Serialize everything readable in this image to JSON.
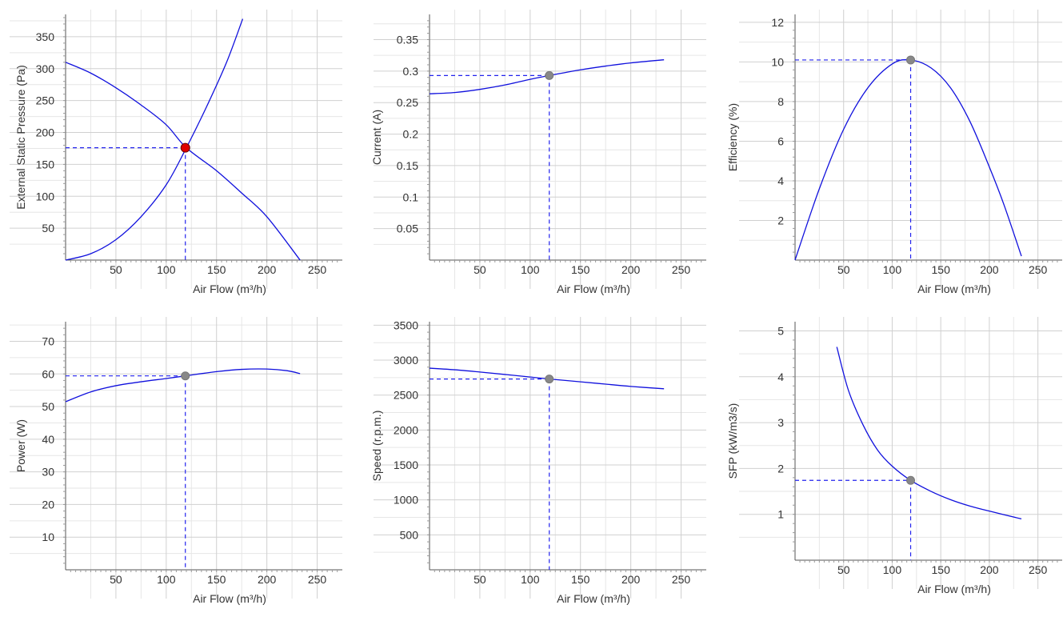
{
  "colors": {
    "curve": "#1010dd",
    "guide": "#2222ee",
    "op_point": "#888888",
    "op_point_primary": "#e00000",
    "grid": "#d0d0d0",
    "axis": "#555555"
  },
  "chart_data": [
    {
      "type": "line",
      "xlabel": "Air Flow (m³/h)",
      "ylabel": "External Static Pressure (Pa)",
      "xlim": [
        0,
        275
      ],
      "ylim": [
        0,
        385
      ],
      "xticks": [
        50,
        100,
        150,
        200,
        250
      ],
      "yticks": [
        50,
        100,
        150,
        200,
        250,
        300,
        350
      ],
      "grid": true,
      "series": [
        {
          "x": [
            0,
            25,
            50,
            75,
            100,
            120,
            150,
            175,
            200,
            233
          ],
          "y": [
            310,
            293,
            270,
            243,
            212,
            176,
            140,
            105,
            68,
            0
          ]
        },
        {
          "x": [
            0,
            25,
            50,
            75,
            100,
            120,
            140,
            160,
            176
          ],
          "y": [
            0,
            10,
            32,
            68,
            118,
            176,
            240,
            310,
            378
          ]
        }
      ],
      "operating_point": {
        "x": 119,
        "y": 176,
        "primary": true
      }
    },
    {
      "type": "line",
      "xlabel": "Air Flow (m³/h)",
      "ylabel": "Current (A)",
      "xlim": [
        0,
        275
      ],
      "ylim": [
        0,
        0.39
      ],
      "xticks": [
        50,
        100,
        150,
        200,
        250
      ],
      "yticks": [
        0.05,
        0.1,
        0.15,
        0.2,
        0.25,
        0.3,
        0.35
      ],
      "grid": true,
      "series": [
        {
          "x": [
            0,
            25,
            50,
            75,
            100,
            119,
            150,
            175,
            200,
            233
          ],
          "y": [
            0.264,
            0.266,
            0.271,
            0.278,
            0.287,
            0.293,
            0.302,
            0.308,
            0.313,
            0.318
          ]
        }
      ],
      "operating_point": {
        "x": 119,
        "y": 0.293
      }
    },
    {
      "type": "line",
      "xlabel": "Air Flow (m³/h)",
      "ylabel": "Efficiency (%)",
      "xlim": [
        0,
        275
      ],
      "ylim": [
        0,
        12.4
      ],
      "xticks": [
        50,
        100,
        150,
        200,
        250
      ],
      "yticks": [
        2,
        4,
        6,
        8,
        10,
        12
      ],
      "grid": true,
      "series": [
        {
          "x": [
            0,
            25,
            50,
            75,
            100,
            119,
            140,
            160,
            180,
            200,
            215,
            233
          ],
          "y": [
            0,
            3.6,
            6.6,
            8.7,
            9.9,
            10.1,
            9.7,
            8.7,
            7.0,
            4.7,
            2.8,
            0.2
          ]
        }
      ],
      "operating_point": {
        "x": 119,
        "y": 10.1
      }
    },
    {
      "type": "line",
      "xlabel": "Air Flow (m³/h)",
      "ylabel": "Power (W)",
      "xlim": [
        0,
        275
      ],
      "ylim": [
        0,
        76
      ],
      "xticks": [
        50,
        100,
        150,
        200,
        250
      ],
      "yticks": [
        10,
        20,
        30,
        40,
        50,
        60,
        70
      ],
      "grid": true,
      "series": [
        {
          "x": [
            0,
            25,
            50,
            75,
            100,
            119,
            150,
            175,
            200,
            220,
            233
          ],
          "y": [
            51.5,
            54.5,
            56.4,
            57.6,
            58.6,
            59.4,
            60.7,
            61.4,
            61.5,
            61.0,
            60.1
          ]
        }
      ],
      "operating_point": {
        "x": 119,
        "y": 59.4
      }
    },
    {
      "type": "line",
      "xlabel": "Air Flow (m³/h)",
      "ylabel": "Speed (r.p.m.)",
      "xlim": [
        0,
        275
      ],
      "ylim": [
        0,
        3550
      ],
      "xticks": [
        50,
        100,
        150,
        200,
        250
      ],
      "yticks": [
        500,
        1000,
        1500,
        2000,
        2500,
        3000,
        3500
      ],
      "grid": true,
      "series": [
        {
          "x": [
            0,
            25,
            50,
            75,
            100,
            119,
            150,
            175,
            200,
            233
          ],
          "y": [
            2885,
            2862,
            2830,
            2795,
            2758,
            2730,
            2690,
            2657,
            2624,
            2590
          ]
        }
      ],
      "operating_point": {
        "x": 119,
        "y": 2730
      }
    },
    {
      "type": "line",
      "xlabel": "Air Flow (m³/h)",
      "ylabel": "SFP (kW/m3/s)",
      "xlim": [
        0,
        275
      ],
      "ylim": [
        0,
        5.2
      ],
      "xticks": [
        50,
        100,
        150,
        200,
        250
      ],
      "yticks": [
        1,
        2,
        3,
        4,
        5
      ],
      "grid": true,
      "series": [
        {
          "x": [
            43,
            55,
            70,
            85,
            100,
            119,
            140,
            160,
            180,
            200,
            233
          ],
          "y": [
            4.65,
            3.7,
            2.95,
            2.4,
            2.05,
            1.74,
            1.5,
            1.32,
            1.18,
            1.07,
            0.9
          ]
        }
      ],
      "operating_point": {
        "x": 119,
        "y": 1.74
      }
    }
  ]
}
